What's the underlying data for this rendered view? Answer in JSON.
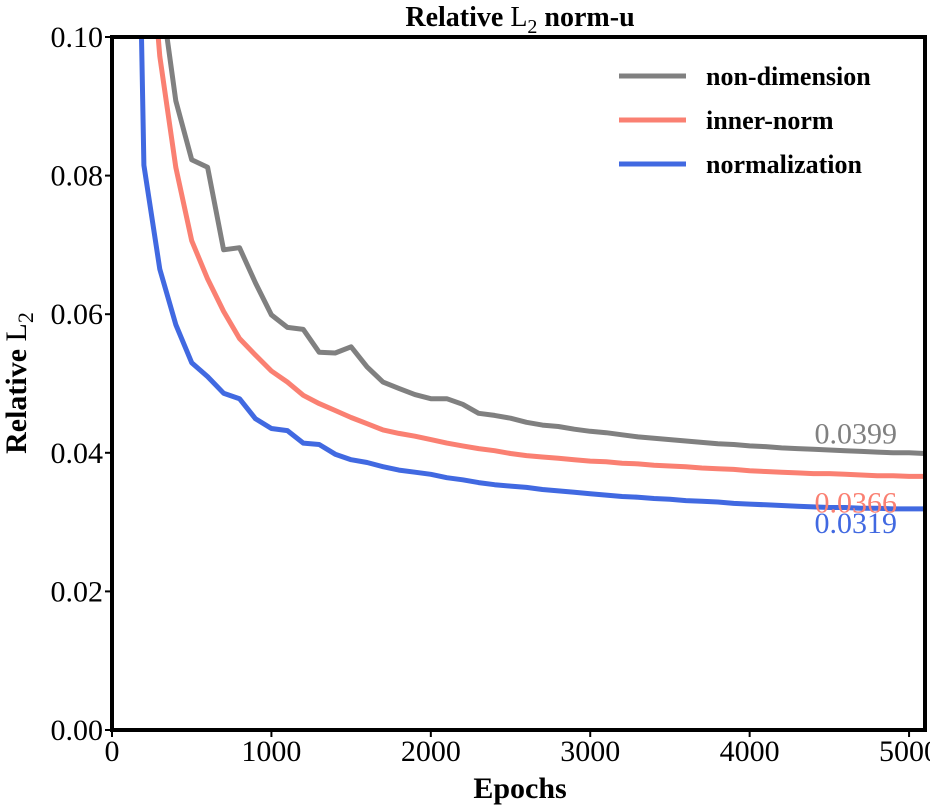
{
  "chart_data": {
    "type": "line",
    "title": {
      "prefix": "Relative ",
      "main": "L",
      "sub": "2",
      "suffix": " norm-u"
    },
    "xlabel": "Epochs",
    "ylabel": {
      "prefix": "Relative ",
      "main": "L",
      "sub": "2"
    },
    "xlim": [
      0,
      5100
    ],
    "ylim": [
      0,
      0.1
    ],
    "xticks": [
      0,
      1000,
      2000,
      3000,
      4000,
      5000
    ],
    "xtick_labels": [
      "0",
      "1000",
      "2000",
      "3000",
      "4000",
      "5000"
    ],
    "yticks": [
      0,
      0.02,
      0.04,
      0.06,
      0.08,
      0.1
    ],
    "ytick_labels": [
      "0.00",
      "0.02",
      "0.04",
      "0.06",
      "0.08",
      "0.10"
    ],
    "legend_position": "top-right",
    "series": [
      {
        "name": "non-dimension",
        "color": "#808080",
        "end_label": "0.0399",
        "points": [
          [
            345,
            0.1
          ],
          [
            400,
            0.0908
          ],
          [
            500,
            0.0823
          ],
          [
            600,
            0.0812
          ],
          [
            700,
            0.0693
          ],
          [
            800,
            0.0696
          ],
          [
            900,
            0.0645
          ],
          [
            1000,
            0.0599
          ],
          [
            1100,
            0.0581
          ],
          [
            1200,
            0.0578
          ],
          [
            1300,
            0.0545
          ],
          [
            1400,
            0.0544
          ],
          [
            1500,
            0.0553
          ],
          [
            1600,
            0.0524
          ],
          [
            1700,
            0.0502
          ],
          [
            1800,
            0.0493
          ],
          [
            1900,
            0.0484
          ],
          [
            2000,
            0.0478
          ],
          [
            2100,
            0.0478
          ],
          [
            2200,
            0.047
          ],
          [
            2300,
            0.0457
          ],
          [
            2400,
            0.0454
          ],
          [
            2500,
            0.045
          ],
          [
            2600,
            0.0444
          ],
          [
            2700,
            0.044
          ],
          [
            2800,
            0.0438
          ],
          [
            2900,
            0.0434
          ],
          [
            3000,
            0.0431
          ],
          [
            3100,
            0.0429
          ],
          [
            3200,
            0.0426
          ],
          [
            3300,
            0.0423
          ],
          [
            3400,
            0.0421
          ],
          [
            3500,
            0.0419
          ],
          [
            3600,
            0.0417
          ],
          [
            3700,
            0.0415
          ],
          [
            3800,
            0.0413
          ],
          [
            3900,
            0.0412
          ],
          [
            4000,
            0.041
          ],
          [
            4100,
            0.0409
          ],
          [
            4200,
            0.0407
          ],
          [
            4300,
            0.0406
          ],
          [
            4400,
            0.0405
          ],
          [
            4500,
            0.0404
          ],
          [
            4600,
            0.0403
          ],
          [
            4700,
            0.0402
          ],
          [
            4800,
            0.0401
          ],
          [
            4900,
            0.04
          ],
          [
            5000,
            0.04
          ],
          [
            5100,
            0.0399
          ]
        ]
      },
      {
        "name": "inner-norm",
        "color": "#fa8072",
        "end_label": "0.0366",
        "points": [
          [
            290,
            0.1
          ],
          [
            300,
            0.0972
          ],
          [
            400,
            0.0812
          ],
          [
            500,
            0.0706
          ],
          [
            600,
            0.0651
          ],
          [
            700,
            0.0604
          ],
          [
            800,
            0.0565
          ],
          [
            900,
            0.0541
          ],
          [
            1000,
            0.0518
          ],
          [
            1100,
            0.0502
          ],
          [
            1200,
            0.0483
          ],
          [
            1300,
            0.0471
          ],
          [
            1400,
            0.0461
          ],
          [
            1500,
            0.0451
          ],
          [
            1600,
            0.0442
          ],
          [
            1700,
            0.0433
          ],
          [
            1800,
            0.0428
          ],
          [
            1900,
            0.0424
          ],
          [
            2000,
            0.0419
          ],
          [
            2100,
            0.0414
          ],
          [
            2200,
            0.041
          ],
          [
            2300,
            0.0406
          ],
          [
            2400,
            0.0403
          ],
          [
            2500,
            0.0399
          ],
          [
            2600,
            0.0396
          ],
          [
            2700,
            0.0394
          ],
          [
            2800,
            0.0392
          ],
          [
            2900,
            0.039
          ],
          [
            3000,
            0.0388
          ],
          [
            3100,
            0.0387
          ],
          [
            3200,
            0.0385
          ],
          [
            3300,
            0.0384
          ],
          [
            3400,
            0.0382
          ],
          [
            3500,
            0.0381
          ],
          [
            3600,
            0.038
          ],
          [
            3700,
            0.0378
          ],
          [
            3800,
            0.0377
          ],
          [
            3900,
            0.0376
          ],
          [
            4000,
            0.0374
          ],
          [
            4100,
            0.0373
          ],
          [
            4200,
            0.0372
          ],
          [
            4300,
            0.0371
          ],
          [
            4400,
            0.037
          ],
          [
            4500,
            0.037
          ],
          [
            4600,
            0.0369
          ],
          [
            4700,
            0.0368
          ],
          [
            4800,
            0.0367
          ],
          [
            4900,
            0.0367
          ],
          [
            5000,
            0.0366
          ],
          [
            5100,
            0.0366
          ]
        ]
      },
      {
        "name": "normalization",
        "color": "#4169e1",
        "end_label": "0.0319",
        "points": [
          [
            185,
            0.1
          ],
          [
            200,
            0.0815
          ],
          [
            300,
            0.0665
          ],
          [
            400,
            0.0585
          ],
          [
            500,
            0.053
          ],
          [
            600,
            0.051
          ],
          [
            700,
            0.0486
          ],
          [
            800,
            0.0478
          ],
          [
            900,
            0.0449
          ],
          [
            1000,
            0.0435
          ],
          [
            1100,
            0.0432
          ],
          [
            1200,
            0.0414
          ],
          [
            1300,
            0.0412
          ],
          [
            1400,
            0.0398
          ],
          [
            1500,
            0.039
          ],
          [
            1600,
            0.0386
          ],
          [
            1700,
            0.038
          ],
          [
            1800,
            0.0375
          ],
          [
            1900,
            0.0372
          ],
          [
            2000,
            0.0369
          ],
          [
            2100,
            0.0364
          ],
          [
            2200,
            0.0361
          ],
          [
            2300,
            0.0357
          ],
          [
            2400,
            0.0354
          ],
          [
            2500,
            0.0352
          ],
          [
            2600,
            0.035
          ],
          [
            2700,
            0.0347
          ],
          [
            2800,
            0.0345
          ],
          [
            2900,
            0.0343
          ],
          [
            3000,
            0.0341
          ],
          [
            3100,
            0.0339
          ],
          [
            3200,
            0.0337
          ],
          [
            3300,
            0.0336
          ],
          [
            3400,
            0.0334
          ],
          [
            3500,
            0.0333
          ],
          [
            3600,
            0.0331
          ],
          [
            3700,
            0.033
          ],
          [
            3800,
            0.0329
          ],
          [
            3900,
            0.0327
          ],
          [
            4000,
            0.0326
          ],
          [
            4100,
            0.0325
          ],
          [
            4200,
            0.0324
          ],
          [
            4300,
            0.0323
          ],
          [
            4400,
            0.0322
          ],
          [
            4500,
            0.0321
          ],
          [
            4600,
            0.0321
          ],
          [
            4700,
            0.032
          ],
          [
            4800,
            0.032
          ],
          [
            4900,
            0.0319
          ],
          [
            5000,
            0.0319
          ],
          [
            5100,
            0.0319
          ]
        ]
      }
    ]
  }
}
